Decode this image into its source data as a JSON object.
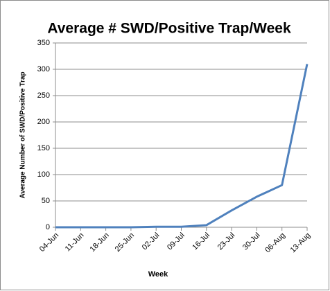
{
  "chart_data": {
    "type": "line",
    "title": "Average # SWD/Positive Trap/Week",
    "x_label": "Week",
    "y_label": "Average Number of SWD/Positive Trap",
    "categories": [
      "04-Jun",
      "11-Jun",
      "18-Jun",
      "25-Jun",
      "02-Jul",
      "09-Jul",
      "16-Jul",
      "23-Jul",
      "30-Jul",
      "06-Aug",
      "13-Aug"
    ],
    "values": [
      0,
      0,
      0,
      0,
      1,
      1,
      4,
      32,
      58,
      80,
      310
    ],
    "color": "#4f81bd",
    "ylim": [
      0,
      350
    ],
    "yticks": [
      0,
      50,
      100,
      150,
      200,
      250,
      300,
      350
    ],
    "grid": true
  }
}
